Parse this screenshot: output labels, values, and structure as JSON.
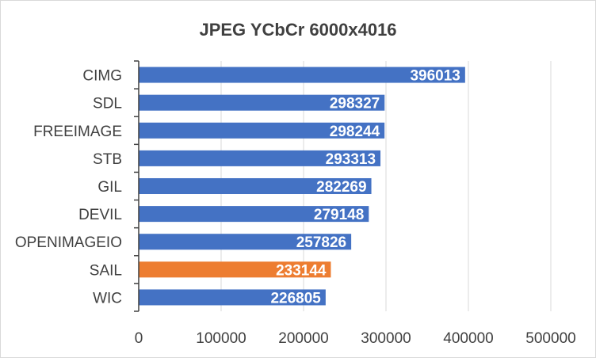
{
  "chart_data": {
    "type": "bar",
    "orientation": "horizontal",
    "title": "JPEG YCbCr 6000x4016",
    "categories": [
      "CIMG",
      "SDL",
      "FREEIMAGE",
      "STB",
      "GIL",
      "DEVIL",
      "OPENIMAGEIO",
      "SAIL",
      "WIC"
    ],
    "values": [
      396013,
      298327,
      298244,
      293313,
      282269,
      279148,
      257826,
      233144,
      226805
    ],
    "data_labels": [
      "396013",
      "298327",
      "298244",
      "293313",
      "282269",
      "279148",
      "257826",
      "233144",
      "226805"
    ],
    "xlim": [
      0,
      500000
    ],
    "x_ticks": [
      0,
      100000,
      200000,
      300000,
      400000,
      500000
    ],
    "x_tick_labels": [
      "0",
      "100000",
      "200000",
      "300000",
      "400000",
      "500000"
    ],
    "grid": true,
    "legend": "none",
    "bar_color": "#4472c4",
    "highlight_category": "SAIL",
    "highlight_color": "#ed7d31"
  }
}
